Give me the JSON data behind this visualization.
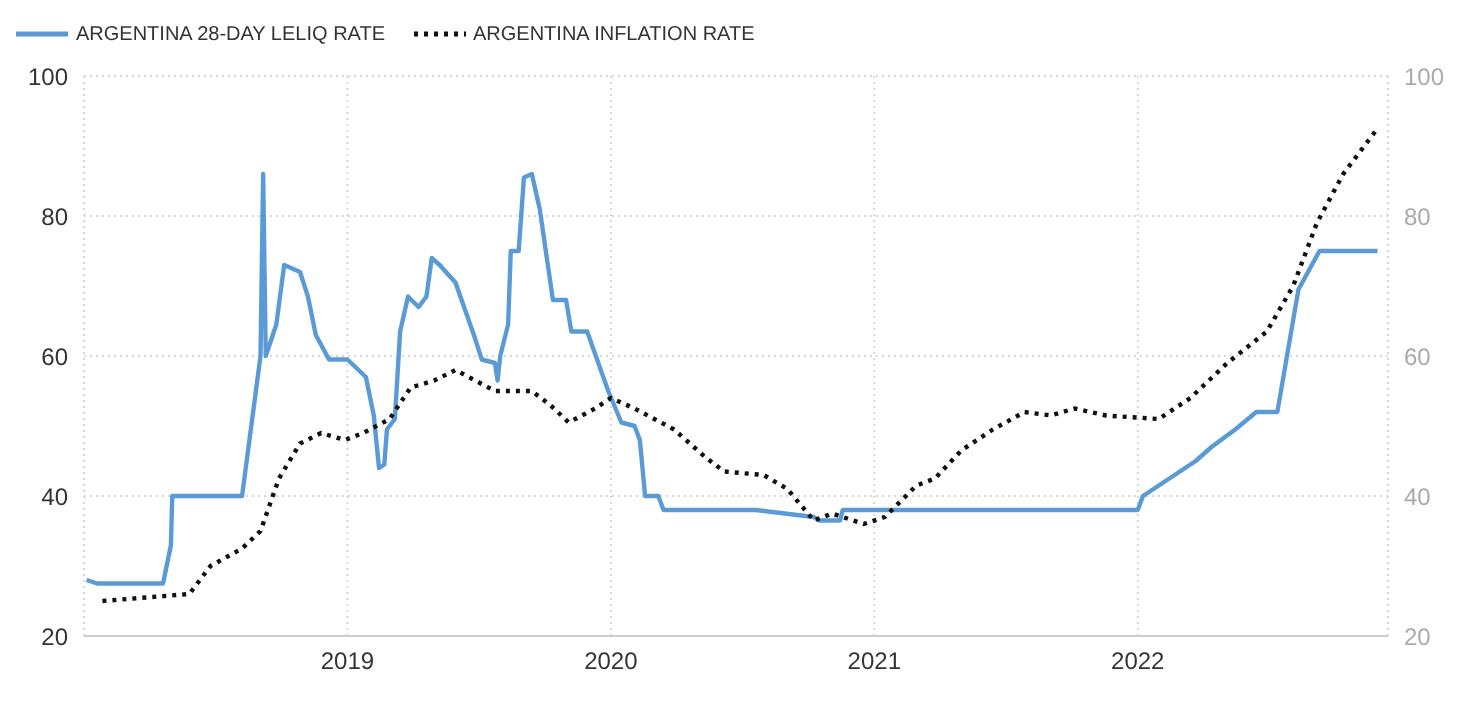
{
  "chart_data": {
    "type": "line",
    "xlim": [
      2018.0,
      2022.95
    ],
    "xticks": [
      2019,
      2020,
      2021,
      2022
    ],
    "ylim": [
      20,
      100
    ],
    "yticks": [
      20,
      40,
      60,
      80,
      100
    ],
    "y2lim": [
      20,
      100
    ],
    "y2ticks": [
      20,
      40,
      60,
      80,
      100
    ],
    "grid": true,
    "legend": "top left",
    "marker": "none",
    "series": [
      {
        "name": "ARGENTINA 28-DAY LELIQ RATE",
        "color": "#5b9bd5",
        "line_style": "solid",
        "x": [
          2018.01,
          2018.05,
          2018.3,
          2018.33,
          2018.335,
          2018.6,
          2018.67,
          2018.68,
          2018.69,
          2018.73,
          2018.76,
          2018.82,
          2018.85,
          2018.88,
          2018.93,
          2019.0,
          2019.07,
          2019.1,
          2019.12,
          2019.14,
          2019.15,
          2019.18,
          2019.2,
          2019.23,
          2019.27,
          2019.3,
          2019.32,
          2019.35,
          2019.41,
          2019.48,
          2019.51,
          2019.56,
          2019.57,
          2019.58,
          2019.61,
          2019.62,
          2019.65,
          2019.67,
          2019.7,
          2019.73,
          2019.78,
          2019.83,
          2019.85,
          2019.91,
          2019.99,
          2020.04,
          2020.09,
          2020.11,
          2020.13,
          2020.18,
          2020.2,
          2020.55,
          2020.77,
          2020.79,
          2020.87,
          2020.88,
          2022.0,
          2022.02,
          2022.22,
          2022.28,
          2022.37,
          2022.45,
          2022.53,
          2022.61,
          2022.69,
          2022.91
        ],
        "values": [
          28,
          27.5,
          27.5,
          33,
          40,
          40,
          60,
          86,
          60,
          64.5,
          73,
          72,
          68.5,
          63,
          59.5,
          59.5,
          57,
          51.5,
          44,
          44.5,
          49.5,
          51,
          63.5,
          68.5,
          67,
          68.5,
          74,
          73,
          70.5,
          63,
          59.5,
          59,
          56.5,
          60,
          64.5,
          75,
          75,
          85.5,
          86,
          81,
          68,
          68,
          63.5,
          63.5,
          55,
          50.5,
          50,
          48,
          40,
          40,
          38,
          38,
          37,
          36.5,
          36.5,
          38,
          38,
          40,
          45,
          47,
          49.5,
          52,
          52,
          69.5,
          75,
          75
        ]
      },
      {
        "name": "ARGENTINA INFLATION RATE",
        "color": "#111111",
        "line_style": "dotted",
        "x": [
          2018.07,
          2018.4,
          2018.48,
          2018.6,
          2018.67,
          2018.74,
          2018.82,
          2018.9,
          2018.99,
          2019.06,
          2019.16,
          2019.24,
          2019.33,
          2019.41,
          2019.56,
          2019.7,
          2019.77,
          2019.84,
          2019.94,
          2020.0,
          2020.09,
          2020.24,
          2020.36,
          2020.43,
          2020.58,
          2020.67,
          2020.77,
          2020.84,
          2020.96,
          2021.04,
          2021.16,
          2021.23,
          2021.33,
          2021.45,
          2021.57,
          2021.67,
          2021.76,
          2021.88,
          2022.08,
          2022.2,
          2022.34,
          2022.49,
          2022.59,
          2022.68,
          2022.78,
          2022.91
        ],
        "values": [
          25,
          26,
          30,
          32.5,
          35,
          42.5,
          47.5,
          49,
          48,
          49,
          51,
          55.5,
          56.5,
          58,
          55,
          55,
          53,
          50.5,
          52.5,
          54,
          52.5,
          49.5,
          45.5,
          43.5,
          43,
          41,
          36.5,
          37.5,
          36,
          37,
          41.5,
          42.5,
          46.5,
          49.5,
          52,
          51.5,
          52.5,
          51.5,
          51,
          54,
          59,
          63.5,
          70,
          79,
          86,
          92.5
        ]
      }
    ]
  }
}
